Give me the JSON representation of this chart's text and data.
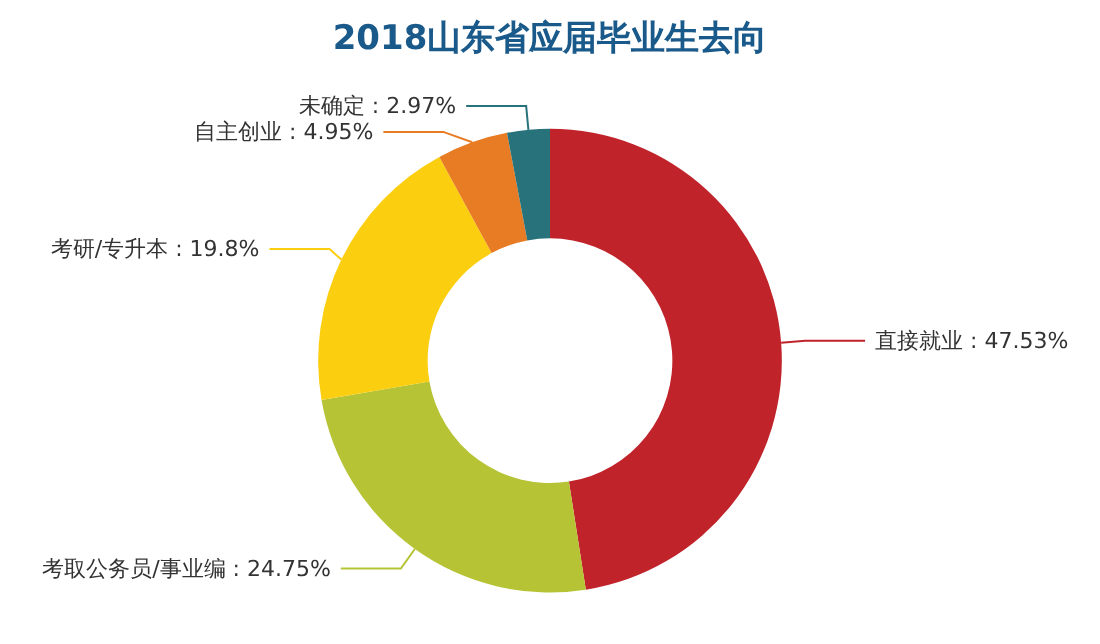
{
  "chart_data": {
    "type": "donut",
    "title": "2018山东省应届毕业生去向",
    "categories": [
      "直接就业",
      "考取公务员/事业编",
      "考研/专升本",
      "自主创业",
      "未确定"
    ],
    "values": [
      47.53,
      24.75,
      19.8,
      4.95,
      2.97
    ],
    "value_labels": [
      "47.53%",
      "24.75%",
      "19.8%",
      "4.95%",
      "2.97%"
    ],
    "colors": [
      "#c1232b",
      "#b5c334",
      "#fcce10",
      "#e87c25",
      "#27727b"
    ],
    "legend": false
  }
}
